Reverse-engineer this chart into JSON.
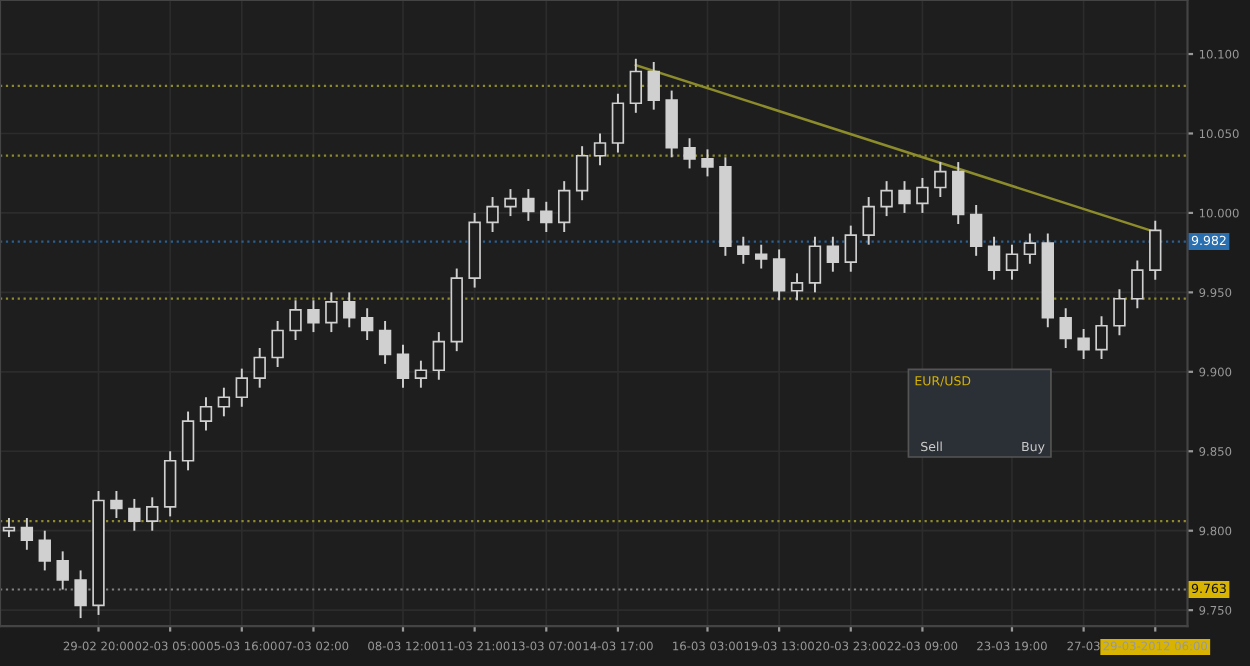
{
  "chart_data": {
    "type": "candlestick",
    "categories": [
      null,
      null,
      null,
      null,
      null,
      "29-02 20:00",
      null,
      null,
      null,
      "02-03 05:00",
      null,
      null,
      null,
      "05-03 16:00",
      null,
      null,
      null,
      "07-03 02:00",
      null,
      null,
      null,
      null,
      "08-03 12:00",
      null,
      null,
      null,
      "11-03 21:00",
      null,
      null,
      null,
      "13-03 07:00",
      null,
      null,
      null,
      "14-03 17:00",
      null,
      null,
      null,
      null,
      "16-03 03:00",
      null,
      null,
      null,
      "19-03 13:00",
      null,
      null,
      null,
      "20-03 23:00",
      null,
      null,
      null,
      "22-03 09:00",
      null,
      null,
      null,
      null,
      "23-03 19:00",
      null,
      null,
      null,
      "27-03",
      null,
      null,
      null,
      "29-03-2012 06:00"
    ],
    "ohlc": [
      [
        9.8,
        9.808,
        9.796,
        9.802
      ],
      [
        9.802,
        9.808,
        9.788,
        9.794
      ],
      [
        9.794,
        9.8,
        9.775,
        9.781
      ],
      [
        9.781,
        9.787,
        9.763,
        9.769
      ],
      [
        9.769,
        9.775,
        9.745,
        9.753
      ],
      [
        9.753,
        9.825,
        9.747,
        9.819
      ],
      [
        9.819,
        9.825,
        9.808,
        9.814
      ],
      [
        9.814,
        9.82,
        9.8,
        9.806
      ],
      [
        9.806,
        9.821,
        9.8,
        9.815
      ],
      [
        9.815,
        9.85,
        9.809,
        9.844
      ],
      [
        9.844,
        9.875,
        9.838,
        9.869
      ],
      [
        9.869,
        9.884,
        9.863,
        9.878
      ],
      [
        9.878,
        9.89,
        9.872,
        9.884
      ],
      [
        9.884,
        9.902,
        9.878,
        9.896
      ],
      [
        9.896,
        9.915,
        9.89,
        9.909
      ],
      [
        9.909,
        9.932,
        9.903,
        9.926
      ],
      [
        9.926,
        9.945,
        9.92,
        9.939
      ],
      [
        9.939,
        9.945,
        9.925,
        9.931
      ],
      [
        9.931,
        9.95,
        9.925,
        9.944
      ],
      [
        9.944,
        9.95,
        9.928,
        9.934
      ],
      [
        9.934,
        9.94,
        9.92,
        9.926
      ],
      [
        9.926,
        9.932,
        9.905,
        9.911
      ],
      [
        9.911,
        9.917,
        9.89,
        9.896
      ],
      [
        9.896,
        9.907,
        9.89,
        9.901
      ],
      [
        9.901,
        9.925,
        9.895,
        9.919
      ],
      [
        9.919,
        9.965,
        9.913,
        9.959
      ],
      [
        9.959,
        10.0,
        9.953,
        9.994
      ],
      [
        9.994,
        10.01,
        9.988,
        10.004
      ],
      [
        10.004,
        10.015,
        9.998,
        10.009
      ],
      [
        10.009,
        10.015,
        9.995,
        10.001
      ],
      [
        10.001,
        10.007,
        9.988,
        9.994
      ],
      [
        9.994,
        10.02,
        9.988,
        10.014
      ],
      [
        10.014,
        10.042,
        10.008,
        10.036
      ],
      [
        10.036,
        10.05,
        10.03,
        10.044
      ],
      [
        10.044,
        10.075,
        10.038,
        10.069
      ],
      [
        10.069,
        10.097,
        10.063,
        10.089
      ],
      [
        10.089,
        10.095,
        10.065,
        10.071
      ],
      [
        10.071,
        10.077,
        10.035,
        10.041
      ],
      [
        10.041,
        10.047,
        10.028,
        10.034
      ],
      [
        10.034,
        10.04,
        10.023,
        10.029
      ],
      [
        10.029,
        10.035,
        9.973,
        9.979
      ],
      [
        9.979,
        9.985,
        9.968,
        9.974
      ],
      [
        9.974,
        9.98,
        9.965,
        9.971
      ],
      [
        9.971,
        9.977,
        9.945,
        9.951
      ],
      [
        9.951,
        9.962,
        9.945,
        9.956
      ],
      [
        9.956,
        9.985,
        9.95,
        9.979
      ],
      [
        9.979,
        9.985,
        9.963,
        9.969
      ],
      [
        9.969,
        9.992,
        9.963,
        9.986
      ],
      [
        9.986,
        10.01,
        9.98,
        10.004
      ],
      [
        10.004,
        10.02,
        9.998,
        10.014
      ],
      [
        10.014,
        10.02,
        10.0,
        10.006
      ],
      [
        10.006,
        10.022,
        10.0,
        10.016
      ],
      [
        10.016,
        10.032,
        10.01,
        10.026
      ],
      [
        10.026,
        10.032,
        9.993,
        9.999
      ],
      [
        9.999,
        10.005,
        9.973,
        9.979
      ],
      [
        9.979,
        9.985,
        9.958,
        9.964
      ],
      [
        9.964,
        9.98,
        9.958,
        9.974
      ],
      [
        9.974,
        9.987,
        9.968,
        9.981
      ],
      [
        9.981,
        9.987,
        9.928,
        9.934
      ],
      [
        9.934,
        9.94,
        9.915,
        9.921
      ],
      [
        9.921,
        9.927,
        9.908,
        9.914
      ],
      [
        9.914,
        9.935,
        9.908,
        9.929
      ],
      [
        9.929,
        9.952,
        9.923,
        9.946
      ],
      [
        9.946,
        9.97,
        9.94,
        9.964
      ],
      [
        9.964,
        9.995,
        9.958,
        9.989
      ]
    ],
    "color": "#d0d0d0",
    "series": [
      {
        "type": "line",
        "values": [
          null,
          null,
          null,
          null,
          null,
          null,
          null,
          null,
          null,
          null,
          null,
          null,
          null,
          null,
          null,
          null,
          null,
          null,
          null,
          null,
          null,
          null,
          null,
          null,
          null,
          null,
          null,
          null,
          null,
          null,
          null,
          null,
          null,
          null,
          null,
          10.093,
          null,
          null,
          null,
          null,
          null,
          null,
          null,
          null,
          null,
          null,
          null,
          null,
          null,
          null,
          null,
          null,
          null,
          null,
          null,
          null,
          null,
          null,
          null,
          null,
          null,
          null,
          null,
          null,
          9.988
        ],
        "color": "#8c8c2c",
        "line_style": "solid"
      }
    ],
    "ylim": [
      9.74,
      10.134
    ],
    "yticks": [
      {
        "value": 9.75,
        "label": "9.750"
      },
      {
        "value": 9.8,
        "label": "9.800"
      },
      {
        "value": 9.85,
        "label": "9.850"
      },
      {
        "value": 9.9,
        "label": "9.900"
      },
      {
        "value": 9.95,
        "label": "9.950"
      },
      {
        "value": 10.0,
        "label": "10.000"
      },
      {
        "value": 10.05,
        "label": "10.050"
      },
      {
        "value": 10.1,
        "label": "10.100"
      }
    ],
    "ref_lines": [
      {
        "axis": "y",
        "value": 10.08,
        "color": "#8c8c2c",
        "line_style": "dotted"
      },
      {
        "axis": "y",
        "value": 10.036,
        "color": "#8c8c2c",
        "line_style": "dotted"
      },
      {
        "axis": "y",
        "value": 9.946,
        "color": "#8c8c2c",
        "line_style": "dotted"
      },
      {
        "axis": "y",
        "value": 9.806,
        "color": "#8c8c2c",
        "line_style": "dotted"
      },
      {
        "axis": "y",
        "value": 9.982,
        "label": "9.982",
        "color": "#2a5f90",
        "line_style": "dotted"
      },
      {
        "axis": "y",
        "value": 9.763,
        "label": "9.763",
        "color": "#808080",
        "line_style": "dotted"
      }
    ],
    "annotations": [
      "EUR/USD",
      "Sell",
      "Buy"
    ],
    "grid": true
  }
}
